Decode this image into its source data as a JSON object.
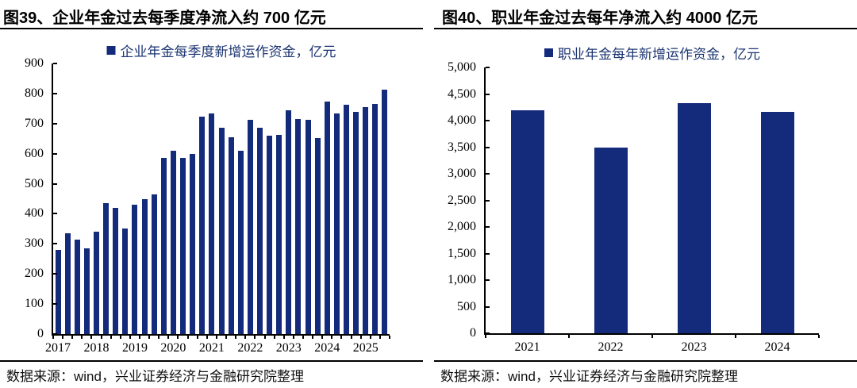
{
  "colors": {
    "bar": "#142A7B",
    "legend_text": "#1B3472",
    "axis": "#000000"
  },
  "charts": [
    {
      "title": "图39、企业年金过去每季度净流入约 700 亿元",
      "legend": "企业年金每季度新增运作资金，亿元",
      "source": "数据来源：wind，兴业证券经济与金融研究院整理",
      "chart_data": {
        "type": "bar",
        "title": "企业年金每季度新增运作资金，亿元",
        "categories": [
          "2017Q1",
          "2017Q2",
          "2017Q3",
          "2017Q4",
          "2018Q1",
          "2018Q2",
          "2018Q3",
          "2018Q4",
          "2019Q1",
          "2019Q2",
          "2019Q3",
          "2019Q4",
          "2020Q1",
          "2020Q2",
          "2020Q3",
          "2020Q4",
          "2021Q1",
          "2021Q2",
          "2021Q3",
          "2021Q4",
          "2022Q1",
          "2022Q2",
          "2022Q3",
          "2022Q4",
          "2023Q1",
          "2023Q2",
          "2023Q3",
          "2023Q4",
          "2024Q1",
          "2024Q2",
          "2024Q3",
          "2024Q4",
          "2025Q1",
          "2025Q2",
          "2025Q3"
        ],
        "values": [
          280,
          335,
          315,
          285,
          340,
          435,
          420,
          350,
          430,
          450,
          465,
          585,
          610,
          585,
          600,
          723,
          735,
          685,
          655,
          610,
          712,
          687,
          660,
          663,
          745,
          715,
          712,
          653,
          773,
          733,
          762,
          740,
          755,
          765,
          812
        ],
        "x_tick_labels": [
          "2017",
          "2018",
          "2019",
          "2020",
          "2021",
          "2022",
          "2023",
          "2024",
          "2025"
        ],
        "x_label_step": 4,
        "ylim": [
          0,
          900
        ],
        "ytick_values": [
          900,
          800,
          700,
          600,
          500,
          400,
          300,
          200,
          100,
          0
        ],
        "ytick_labels": [
          "900",
          "800",
          "700",
          "600",
          "500",
          "400",
          "300",
          "200",
          "100",
          "0"
        ],
        "grid": false,
        "legend_position": "top"
      }
    },
    {
      "title": "图40、职业年金过去每年净流入约 4000 亿元",
      "legend": "职业年金每年新增运作资金，亿元",
      "source": "数据来源：wind，兴业证券经济与金融研究院整理",
      "chart_data": {
        "type": "bar",
        "title": "职业年金每年新增运作资金，亿元",
        "categories": [
          "2021",
          "2022",
          "2023",
          "2024"
        ],
        "values": [
          4190,
          3495,
          4330,
          4170
        ],
        "x_tick_labels": [
          "2021",
          "2022",
          "2023",
          "2024"
        ],
        "x_label_step": 1,
        "ylim": [
          0,
          5000
        ],
        "ytick_values": [
          5000,
          4500,
          4000,
          3500,
          3000,
          2500,
          2000,
          1500,
          1000,
          500,
          0
        ],
        "ytick_labels": [
          "5,000",
          "4,500",
          "4,000",
          "3,500",
          "3,000",
          "2,500",
          "2,000",
          "1,500",
          "1,000",
          "500",
          "0"
        ],
        "grid": false,
        "legend_position": "top"
      }
    }
  ]
}
